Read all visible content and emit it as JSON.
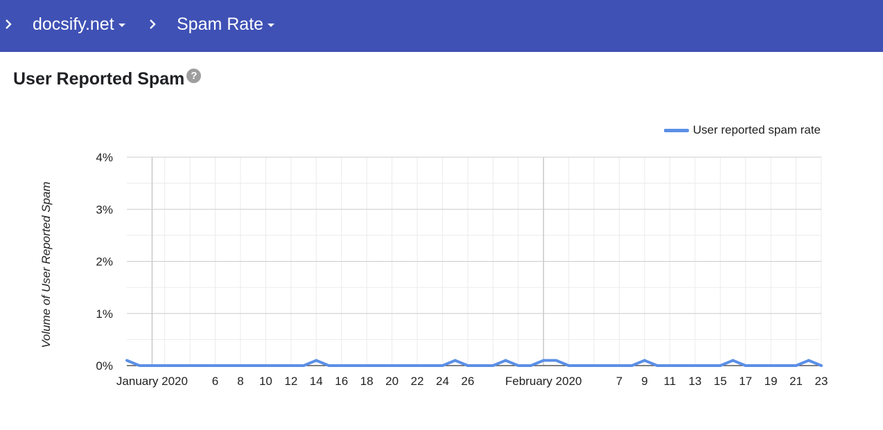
{
  "header": {
    "breadcrumbs": [
      {
        "label": "docsify.net",
        "has_dropdown": true
      },
      {
        "label": "Spam Rate",
        "has_dropdown": true
      }
    ],
    "separator_icon": "chevron-right-icon",
    "background": "#3f51b5"
  },
  "section": {
    "title": "User Reported Spam",
    "help_icon": "help-circle-icon",
    "help_glyph": "?"
  },
  "chart_data": {
    "type": "line",
    "ylabel": "Volume of User Reported Spam",
    "xlabel": "",
    "ylim": [
      0,
      4
    ],
    "y_ticks": [
      {
        "value": 0,
        "label": "0%"
      },
      {
        "value": 1,
        "label": "1%"
      },
      {
        "value": 2,
        "label": "2%"
      },
      {
        "value": 3,
        "label": "3%"
      },
      {
        "value": 4,
        "label": "4%"
      }
    ],
    "x_range": [
      "2019-12-30",
      "2020-02-23"
    ],
    "x_ticks": [
      {
        "date": "2020-01-01",
        "label": "January 2020"
      },
      {
        "date": "2020-01-06",
        "label": "6"
      },
      {
        "date": "2020-01-08",
        "label": "8"
      },
      {
        "date": "2020-01-10",
        "label": "10"
      },
      {
        "date": "2020-01-12",
        "label": "12"
      },
      {
        "date": "2020-01-14",
        "label": "14"
      },
      {
        "date": "2020-01-16",
        "label": "16"
      },
      {
        "date": "2020-01-18",
        "label": "18"
      },
      {
        "date": "2020-01-20",
        "label": "20"
      },
      {
        "date": "2020-01-22",
        "label": "22"
      },
      {
        "date": "2020-01-24",
        "label": "24"
      },
      {
        "date": "2020-01-26",
        "label": "26"
      },
      {
        "date": "2020-02-01",
        "label": "February 2020"
      },
      {
        "date": "2020-02-07",
        "label": "7"
      },
      {
        "date": "2020-02-09",
        "label": "9"
      },
      {
        "date": "2020-02-11",
        "label": "11"
      },
      {
        "date": "2020-02-13",
        "label": "13"
      },
      {
        "date": "2020-02-15",
        "label": "15"
      },
      {
        "date": "2020-02-17",
        "label": "17"
      },
      {
        "date": "2020-02-19",
        "label": "19"
      },
      {
        "date": "2020-02-21",
        "label": "21"
      },
      {
        "date": "2020-02-23",
        "label": "23"
      }
    ],
    "grid": true,
    "legend_position": "top-right",
    "series": [
      {
        "name": "User reported spam rate",
        "color": "#5b8fe6",
        "points": [
          {
            "x": "2019-12-30",
            "y": 0.1
          },
          {
            "x": "2019-12-31",
            "y": 0
          },
          {
            "x": "2020-01-13",
            "y": 0
          },
          {
            "x": "2020-01-14",
            "y": 0.1
          },
          {
            "x": "2020-01-15",
            "y": 0
          },
          {
            "x": "2020-01-24",
            "y": 0
          },
          {
            "x": "2020-01-25",
            "y": 0.1
          },
          {
            "x": "2020-01-26",
            "y": 0
          },
          {
            "x": "2020-01-28",
            "y": 0
          },
          {
            "x": "2020-01-29",
            "y": 0.1
          },
          {
            "x": "2020-01-30",
            "y": 0
          },
          {
            "x": "2020-01-31",
            "y": 0
          },
          {
            "x": "2020-02-01",
            "y": 0.1
          },
          {
            "x": "2020-02-02",
            "y": 0.1
          },
          {
            "x": "2020-02-03",
            "y": 0
          },
          {
            "x": "2020-02-08",
            "y": 0
          },
          {
            "x": "2020-02-09",
            "y": 0.1
          },
          {
            "x": "2020-02-10",
            "y": 0
          },
          {
            "x": "2020-02-15",
            "y": 0
          },
          {
            "x": "2020-02-16",
            "y": 0.1
          },
          {
            "x": "2020-02-17",
            "y": 0
          },
          {
            "x": "2020-02-21",
            "y": 0
          },
          {
            "x": "2020-02-22",
            "y": 0.1
          },
          {
            "x": "2020-02-23",
            "y": 0
          }
        ]
      }
    ],
    "colors": {
      "major_grid": "#cccccc",
      "minor_grid": "#ebebeb",
      "month_line": "#bdbdbd",
      "baseline": "#333333"
    }
  }
}
